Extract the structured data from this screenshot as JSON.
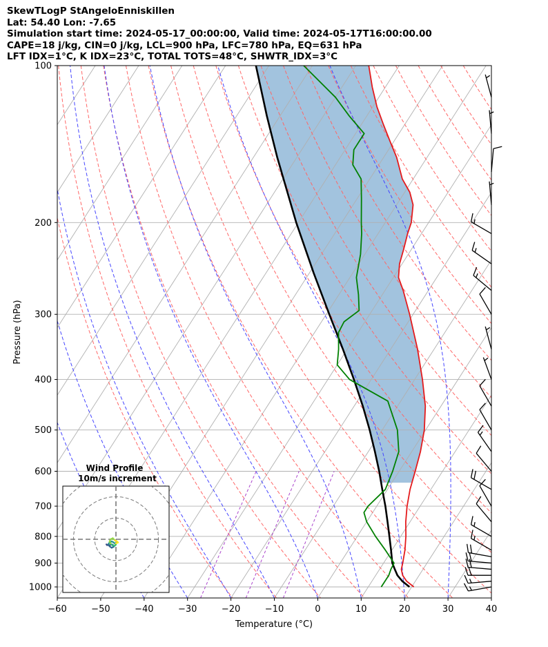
{
  "header": {
    "line1": "SkewTLogP StAngeloEnniskillen",
    "line2": "Lat: 54.40   Lon: -7.65",
    "line3": "Simulation start time: 2024-05-17_00:00:00, Valid time: 2024-05-17T16:00:00.00",
    "line4": "CAPE=18 j/kg, CIN=0 j/kg, LCL=900 hPa, LFC=780 hPa, EQ=631 hPa",
    "line5": "LFT IDX=1°C, K IDX=23°C, TOTAL TOTS=48°C, SHWTR_IDX=3°C"
  },
  "chart_data": {
    "type": "line",
    "subtype": "skew-t log-p",
    "xlabel": "Temperature (°C)",
    "ylabel": "Pressure (hPa)",
    "xlim": [
      -60,
      40
    ],
    "ylim": [
      1050,
      100
    ],
    "xticks": [
      "−60",
      "−50",
      "−40",
      "−30",
      "−20",
      "−10",
      "0",
      "10",
      "20",
      "30",
      "40"
    ],
    "yticks": [
      "100",
      "200",
      "300",
      "400",
      "500",
      "600",
      "700",
      "800",
      "900",
      "1000"
    ],
    "ytick_values": [
      100,
      200,
      300,
      400,
      500,
      600,
      700,
      800,
      900,
      1000
    ],
    "grid": true,
    "series": [
      {
        "key": "temperature",
        "color": "#e41a1c",
        "points": [
          [
            1000,
            20.5
          ],
          [
            975,
            18.0
          ],
          [
            950,
            16.2
          ],
          [
            925,
            15.0
          ],
          [
            900,
            14.4
          ],
          [
            850,
            13.0
          ],
          [
            800,
            11.2
          ],
          [
            750,
            9.0
          ],
          [
            700,
            7.0
          ],
          [
            650,
            5.2
          ],
          [
            600,
            3.7
          ],
          [
            550,
            2.0
          ],
          [
            500,
            -0.3
          ],
          [
            450,
            -3.6
          ],
          [
            400,
            -8.2
          ],
          [
            350,
            -13.8
          ],
          [
            300,
            -20.8
          ],
          [
            270,
            -25.8
          ],
          [
            255,
            -28.8
          ],
          [
            240,
            -30.6
          ],
          [
            225,
            -31.8
          ],
          [
            210,
            -33.2
          ],
          [
            200,
            -34.0
          ],
          [
            185,
            -36.2
          ],
          [
            175,
            -38.8
          ],
          [
            165,
            -42.5
          ],
          [
            150,
            -47.0
          ],
          [
            140,
            -50.8
          ],
          [
            130,
            -54.8
          ],
          [
            120,
            -59.0
          ],
          [
            110,
            -63.0
          ],
          [
            100,
            -67.0
          ]
        ]
      },
      {
        "key": "dewpoint",
        "color": "#008000",
        "points": [
          [
            1000,
            13.0
          ],
          [
            950,
            13.0
          ],
          [
            925,
            12.6
          ],
          [
            900,
            12.4
          ],
          [
            850,
            8.5
          ],
          [
            800,
            4.2
          ],
          [
            750,
            0.0
          ],
          [
            720,
            -2.0
          ],
          [
            700,
            -2.0
          ],
          [
            650,
            -0.5
          ],
          [
            600,
            -1.5
          ],
          [
            550,
            -3.0
          ],
          [
            500,
            -6.5
          ],
          [
            440,
            -13.0
          ],
          [
            400,
            -25.0
          ],
          [
            375,
            -30.0
          ],
          [
            350,
            -32.0
          ],
          [
            325,
            -34.5
          ],
          [
            310,
            -34.8
          ],
          [
            295,
            -33.0
          ],
          [
            275,
            -35.5
          ],
          [
            255,
            -38.5
          ],
          [
            230,
            -41.0
          ],
          [
            210,
            -43.8
          ],
          [
            200,
            -45.5
          ],
          [
            180,
            -49.0
          ],
          [
            165,
            -52.0
          ],
          [
            155,
            -56.0
          ],
          [
            145,
            -58.0
          ],
          [
            135,
            -58.0
          ],
          [
            125,
            -64.0
          ],
          [
            115,
            -70.0
          ],
          [
            100,
            -82.0
          ]
        ]
      },
      {
        "key": "parcel",
        "color": "#000000",
        "points": [
          [
            1000,
            19.5
          ],
          [
            975,
            17.0
          ],
          [
            950,
            15.0
          ],
          [
            925,
            13.5
          ],
          [
            900,
            12.0
          ],
          [
            850,
            9.8
          ],
          [
            800,
            7.4
          ],
          [
            750,
            4.8
          ],
          [
            700,
            2.0
          ],
          [
            650,
            -1.2
          ],
          [
            600,
            -4.6
          ],
          [
            550,
            -8.5
          ],
          [
            500,
            -12.9
          ],
          [
            450,
            -18.0
          ],
          [
            400,
            -24.0
          ],
          [
            350,
            -31.0
          ],
          [
            300,
            -39.3
          ],
          [
            250,
            -49.0
          ],
          [
            200,
            -60.5
          ],
          [
            150,
            -74.5
          ],
          [
            125,
            -83.0
          ],
          [
            100,
            -93.0
          ]
        ]
      }
    ],
    "cape_shading": {
      "color": "#7aaad0",
      "between": [
        "parcel",
        "temperature"
      ],
      "pressure_range": [
        631,
        100
      ]
    },
    "dry_adiabats": {
      "color": "#ff6666",
      "style": "dashed",
      "theta_K": [
        250,
        260,
        270,
        280,
        290,
        300,
        310,
        320,
        330,
        340,
        350,
        360,
        370,
        380,
        390,
        400,
        410,
        420,
        430,
        440
      ]
    },
    "moist_adiabats": {
      "color": "#4444ff",
      "style": "dashed",
      "t_start_C": [
        -40,
        -30,
        -20,
        -10,
        0,
        10,
        20,
        30
      ]
    },
    "mixing_ratio_lines": {
      "color": "#aa44cc",
      "style": "dashed"
    },
    "isotherms": {
      "color": "#b0b0b0",
      "step_C": 10
    },
    "wind_barbs": [
      {
        "p": 1000,
        "spd": 15,
        "dir": 260
      },
      {
        "p": 975,
        "spd": 15,
        "dir": 265
      },
      {
        "p": 950,
        "spd": 20,
        "dir": 270
      },
      {
        "p": 925,
        "spd": 20,
        "dir": 275
      },
      {
        "p": 900,
        "spd": 20,
        "dir": 275
      },
      {
        "p": 875,
        "spd": 20,
        "dir": 280
      },
      {
        "p": 850,
        "spd": 15,
        "dir": 300
      },
      {
        "p": 800,
        "spd": 15,
        "dir": 300
      },
      {
        "p": 750,
        "spd": 10,
        "dir": 320
      },
      {
        "p": 700,
        "spd": 10,
        "dir": 330
      },
      {
        "p": 650,
        "spd": 20,
        "dir": 300
      },
      {
        "p": 600,
        "spd": 10,
        "dir": 320
      },
      {
        "p": 550,
        "spd": 15,
        "dir": 325
      },
      {
        "p": 500,
        "spd": 10,
        "dir": 330
      },
      {
        "p": 450,
        "spd": 10,
        "dir": 330
      },
      {
        "p": 400,
        "spd": 5,
        "dir": 340
      },
      {
        "p": 350,
        "spd": 5,
        "dir": 345
      },
      {
        "p": 300,
        "spd": 10,
        "dir": 330
      },
      {
        "p": 270,
        "spd": 15,
        "dir": 310
      },
      {
        "p": 240,
        "spd": 15,
        "dir": 305
      },
      {
        "p": 210,
        "spd": 15,
        "dir": 300
      },
      {
        "p": 185,
        "spd": 5,
        "dir": 355
      },
      {
        "p": 160,
        "spd": 10,
        "dir": 5
      },
      {
        "p": 135,
        "spd": 5,
        "dir": 355
      },
      {
        "p": 115,
        "spd": 5,
        "dir": 345
      }
    ],
    "inset": {
      "title": "Wind Profile",
      "subtitle": "10m/s increment",
      "rings_ms": [
        10,
        20,
        30
      ],
      "max_ms": 30,
      "hodograph_uv": [
        [
          -4.2,
          2.8
        ],
        [
          -4.5,
          2.4
        ],
        [
          -3.5,
          2.8
        ],
        [
          -3.0,
          3.0
        ],
        [
          -2.5,
          2.5
        ],
        [
          -1.5,
          2.5
        ],
        [
          -1.0,
          3.5
        ],
        [
          -2.0,
          4.0
        ],
        [
          -3.0,
          3.3
        ],
        [
          -3.5,
          2.2
        ],
        [
          -3.0,
          1.5
        ],
        [
          -2.0,
          1.0
        ],
        [
          -1.0,
          1.5
        ],
        [
          -0.5,
          2.0
        ],
        [
          0.0,
          2.5
        ],
        [
          -0.5,
          3.0
        ],
        [
          -1.5,
          3.0
        ],
        [
          -2.5,
          2.0
        ],
        [
          -3.0,
          1.0
        ],
        [
          -2.5,
          0.0
        ],
        [
          -1.5,
          -0.5
        ],
        [
          -0.5,
          0.5
        ],
        [
          0.5,
          1.0
        ],
        [
          1.0,
          1.5
        ],
        [
          0.0,
          2.0
        ]
      ]
    }
  }
}
